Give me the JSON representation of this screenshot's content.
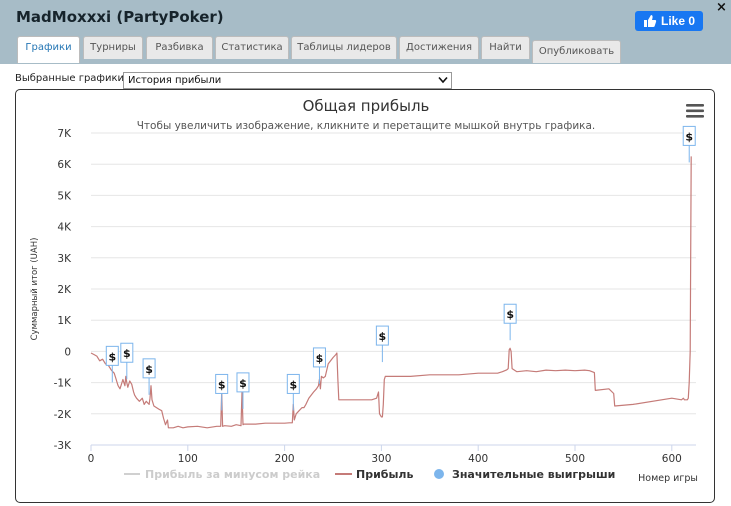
{
  "window": {
    "title": "MadMoxxxi (PartyPoker)",
    "like_label": "Like 0",
    "close_glyph": "×"
  },
  "tabs": [
    {
      "label": "Графики",
      "active": true
    },
    {
      "label": "Турниры",
      "active": false
    },
    {
      "label": "Разбивка",
      "active": false
    },
    {
      "label": "Статистика",
      "active": false
    },
    {
      "label": "Таблицы лидеров",
      "active": false
    },
    {
      "label": "Достижения",
      "active": false
    },
    {
      "label": "Найти",
      "active": false
    },
    {
      "label": "Опубликовать",
      "active": false
    }
  ],
  "selector": {
    "label": "Выбранные графики:",
    "value": "История прибыли"
  },
  "menu_icon": "hamburger-menu-icon",
  "colors": {
    "header_bg": "#a7bcc7",
    "profit_line": "#c57b78",
    "rake_line": "#d0d0d0",
    "big_win_marker": "#7cb5ec",
    "like_button": "#1877f2",
    "active_tab_text": "#2677b5"
  },
  "chart_data": {
    "type": "line",
    "title": "Общая прибыль",
    "subtitle": "Чтобы увеличить изображение, кликните и перетащите мышкой внутрь графика.",
    "xlabel": "Номер игры",
    "ylabel": "Суммарный итог (UAH)",
    "xlim": [
      0,
      625
    ],
    "ylim": [
      -3000,
      7000
    ],
    "x_ticks": [
      "0",
      "100",
      "200",
      "300",
      "400",
      "500",
      "600"
    ],
    "x_tick_values": [
      0,
      100,
      200,
      300,
      400,
      500,
      600
    ],
    "y_ticks": [
      "7K",
      "6K",
      "5K",
      "4K",
      "3K",
      "2K",
      "1K",
      "0",
      "-1K",
      "-2K",
      "-3K"
    ],
    "y_tick_values": [
      7000,
      6000,
      5000,
      4000,
      3000,
      2000,
      1000,
      0,
      -1000,
      -2000,
      -3000
    ],
    "grid": "horizontal",
    "legend_position": "bottom-center",
    "legend": [
      {
        "name": "Прибыль за минусом рейка",
        "type": "line",
        "visible": false
      },
      {
        "name": "Прибыль",
        "type": "line",
        "visible": true
      },
      {
        "name": "Значительные выигрыши",
        "type": "marker",
        "visible": true
      }
    ],
    "series": [
      {
        "name": "Прибыль",
        "x": [
          0,
          3,
          6,
          9,
          12,
          15,
          18,
          21,
          24,
          26,
          27,
          28,
          30,
          33,
          35,
          36,
          37,
          38,
          40,
          42,
          44,
          45,
          47,
          50,
          53,
          55,
          57,
          60,
          61,
          62,
          63,
          65,
          70,
          73,
          75,
          77,
          79,
          80,
          85,
          90,
          95,
          100,
          110,
          120,
          130,
          134,
          135,
          136,
          138,
          145,
          150,
          155,
          156,
          157,
          158,
          170,
          180,
          190,
          200,
          205,
          208,
          209,
          210,
          212,
          215,
          218,
          220,
          222,
          225,
          230,
          233,
          235,
          236,
          237,
          238,
          240,
          242,
          245,
          250,
          253,
          254,
          255,
          256,
          258,
          260,
          275,
          290,
          295,
          297,
          298,
          300,
          301,
          302,
          303,
          304,
          330,
          350,
          380,
          400,
          420,
          425,
          429,
          430,
          431,
          432,
          433,
          434,
          435,
          440,
          450,
          460,
          470,
          480,
          490,
          500,
          510,
          515,
          520,
          521,
          535,
          540,
          541,
          560,
          600,
          610,
          612,
          613,
          614,
          615,
          616,
          617,
          618,
          619,
          620
        ],
        "y": [
          -50,
          -100,
          -150,
          -300,
          -250,
          -400,
          -450,
          -600,
          -700,
          -900,
          -1000,
          -1100,
          -1200,
          -900,
          -1100,
          -800,
          -1000,
          -1150,
          -950,
          -1050,
          -1300,
          -1400,
          -1500,
          -1600,
          -1500,
          -1700,
          -1600,
          -1700,
          -1500,
          -1100,
          -1550,
          -1750,
          -1850,
          -1900,
          -2150,
          -2350,
          -2200,
          -2450,
          -2450,
          -2400,
          -2450,
          -2420,
          -2400,
          -2450,
          -2400,
          -2400,
          -1300,
          -2400,
          -2380,
          -2400,
          -2350,
          -2380,
          -1300,
          -2350,
          -2330,
          -2330,
          -2300,
          -2300,
          -2300,
          -2290,
          -2290,
          -1700,
          -2200,
          -2000,
          -1900,
          -1800,
          -1800,
          -1700,
          -1500,
          -1300,
          -1200,
          -1100,
          -900,
          -1200,
          -800,
          -850,
          -800,
          -400,
          -200,
          -100,
          -50,
          -850,
          -1550,
          -1550,
          -1550,
          -1550,
          -1550,
          -1500,
          -1300,
          -2000,
          -2100,
          -2100,
          -1700,
          -900,
          -800,
          -800,
          -750,
          -750,
          -700,
          -700,
          -650,
          -600,
          -580,
          -550,
          50,
          100,
          0,
          -550,
          -650,
          -620,
          -650,
          -600,
          -620,
          -600,
          -620,
          -600,
          -620,
          -680,
          -1250,
          -1200,
          -1350,
          -1750,
          -1700,
          -1500,
          -1550,
          -1500,
          -1550,
          -1550,
          -1550,
          -1550,
          -1500,
          -1000,
          0,
          6250
        ]
      }
    ],
    "big_wins": [
      {
        "label": "$",
        "x": 22,
        "y": -800
      },
      {
        "label": "$",
        "x": 37,
        "y": -700
      },
      {
        "label": "$",
        "x": 60,
        "y": -1200
      },
      {
        "label": "$",
        "x": 135,
        "y": -1700
      },
      {
        "label": "$",
        "x": 157,
        "y": -1650
      },
      {
        "label": "$",
        "x": 209,
        "y": -1700
      },
      {
        "label": "$",
        "x": 236,
        "y": -850
      },
      {
        "label": "$",
        "x": 301,
        "y": -150
      },
      {
        "label": "$",
        "x": 433,
        "y": 550
      },
      {
        "label": "$",
        "x": 618,
        "y": 6250
      }
    ]
  }
}
